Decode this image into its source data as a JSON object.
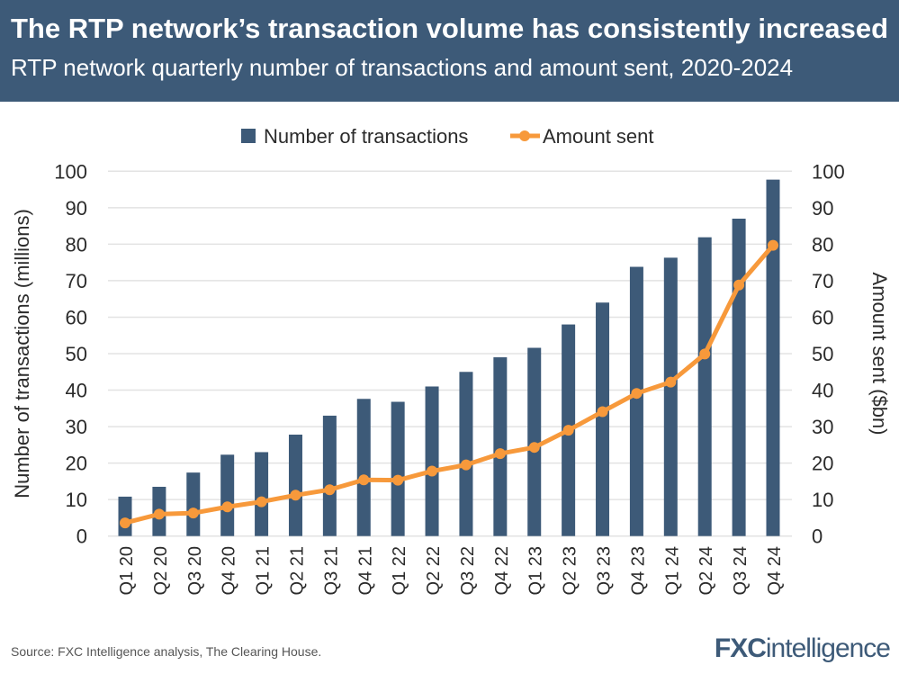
{
  "header": {
    "title": "The RTP network’s transaction volume has consistently increased",
    "subtitle": "RTP network quarterly number of transactions and amount sent, 2020-2024"
  },
  "footer": {
    "source": "Source: FXC Intelligence analysis, The Clearing House.",
    "logo": "FXCintelligence"
  },
  "chart_data": {
    "type": "bar+line",
    "categories": [
      "Q1 20",
      "Q2 20",
      "Q3 20",
      "Q4 20",
      "Q1 21",
      "Q2 21",
      "Q3 21",
      "Q4 21",
      "Q1 22",
      "Q2 22",
      "Q3 22",
      "Q4 22",
      "Q1 23",
      "Q2 23",
      "Q3 23",
      "Q4 23",
      "Q1 24",
      "Q2 24",
      "Q3 24",
      "Q4 24"
    ],
    "series": [
      {
        "name": "Number of transactions",
        "type": "bar",
        "axis": "left",
        "color": "#3d5a78",
        "values": [
          10.8,
          13.5,
          17.4,
          22.3,
          23,
          27.8,
          33,
          37.6,
          36.8,
          41,
          45,
          49,
          51.6,
          58,
          64,
          73.8,
          76.3,
          81.9,
          87,
          97.7
        ]
      },
      {
        "name": "Amount sent",
        "type": "line",
        "axis": "right",
        "color": "#f7993b",
        "values": [
          3.6,
          6,
          6.3,
          8,
          9.4,
          11.2,
          12.7,
          15.4,
          15.3,
          17.8,
          19.5,
          22.6,
          24.3,
          29,
          34.1,
          39.1,
          42.2,
          49.9,
          68.8,
          79.7
        ]
      }
    ],
    "ylabel": "Number of transactions (millions)",
    "y2label": "Amount sent ($bn)",
    "ylim": [
      0,
      100
    ],
    "y2lim": [
      0,
      100
    ],
    "yticks": [
      0,
      10,
      20,
      30,
      40,
      50,
      60,
      70,
      80,
      90,
      100
    ],
    "grid": true,
    "legend": "top"
  }
}
